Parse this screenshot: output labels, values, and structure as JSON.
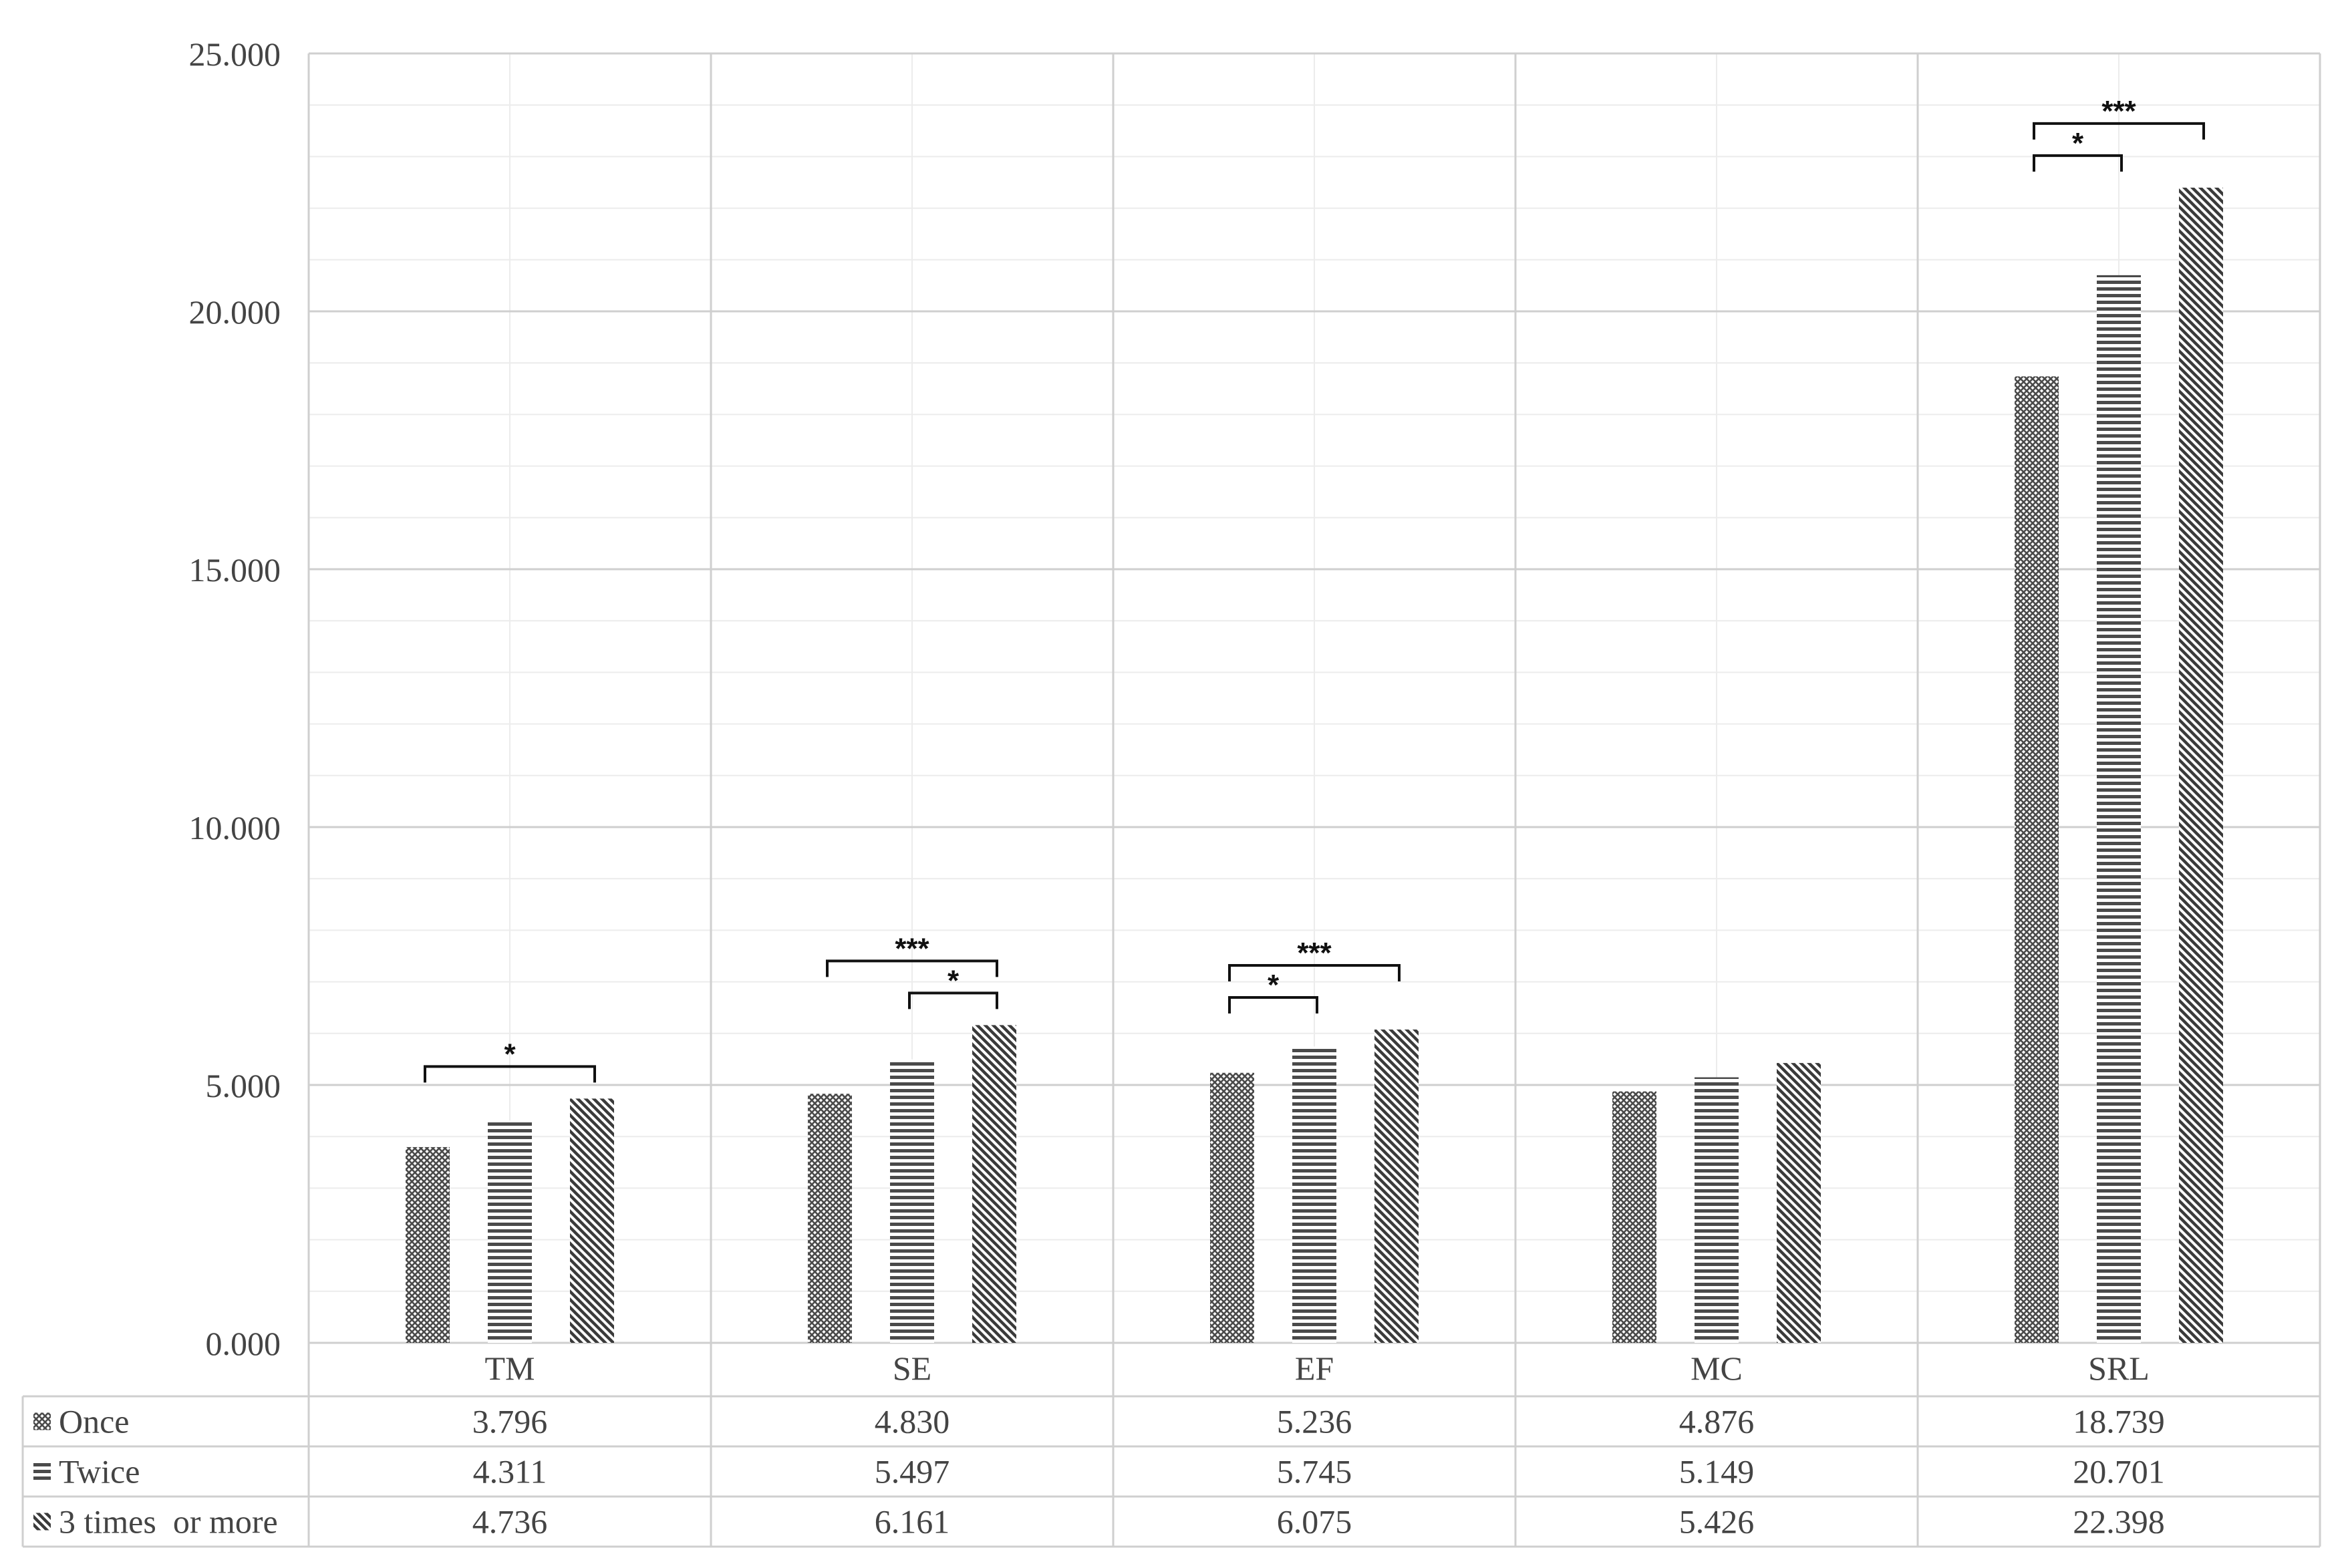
{
  "chart_data": {
    "type": "bar",
    "categories": [
      "TM",
      "SE",
      "EF",
      "MC",
      "SRL"
    ],
    "series": [
      {
        "name": "Once",
        "values": [
          3.796,
          4.83,
          5.236,
          4.876,
          18.739
        ],
        "pattern": "crosshatch"
      },
      {
        "name": "Twice",
        "values": [
          4.311,
          5.497,
          5.745,
          5.149,
          20.701
        ],
        "pattern": "horizontal-lines"
      },
      {
        "name": "3 times  or more",
        "values": [
          4.736,
          6.161,
          6.075,
          5.426,
          22.398
        ],
        "pattern": "diagonal-lines"
      }
    ],
    "table_values": [
      [
        "3.796",
        "4.830",
        "5.236",
        "4.876",
        "18.739"
      ],
      [
        "4.311",
        "5.497",
        "5.745",
        "5.149",
        "20.701"
      ],
      [
        "4.736",
        "6.161",
        "6.075",
        "5.426",
        "22.398"
      ]
    ],
    "y_ticks": [
      "0.000",
      "5.000",
      "10.000",
      "15.000",
      "20.000",
      "25.000"
    ],
    "ylim": [
      0,
      25
    ],
    "grid": true,
    "legend": "data table below chart",
    "significance": [
      {
        "category": "TM",
        "from": 0,
        "to": 2,
        "label": "*"
      },
      {
        "category": "SE",
        "from": 0,
        "to": 2,
        "label": "***"
      },
      {
        "category": "SE",
        "from": 1,
        "to": 2,
        "label": "*"
      },
      {
        "category": "EF",
        "from": 0,
        "to": 2,
        "label": "***"
      },
      {
        "category": "EF",
        "from": 0,
        "to": 1,
        "label": "*"
      },
      {
        "category": "SRL",
        "from": 0,
        "to": 2,
        "label": "***"
      },
      {
        "category": "SRL",
        "from": 0,
        "to": 1,
        "label": "*"
      }
    ],
    "colors": {
      "bar": "#555555",
      "grid_major": "#cfcfcf",
      "grid_minor": "#ececec",
      "text": "#444444"
    }
  }
}
